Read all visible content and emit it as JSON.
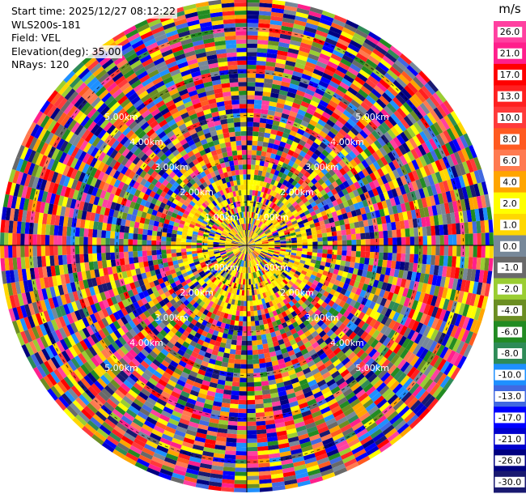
{
  "header": {
    "start_time": "Start time: 2025/12/27 08:12:22",
    "instrument": "WLS200s-181",
    "field": "Field: VEL",
    "elevation": "Elevation(deg): 35.00",
    "nrays": "NRays: 120"
  },
  "chart_data": {
    "type": "heatmap",
    "projection": "polar",
    "title": "",
    "field": "VEL",
    "elevation_deg": 35.0,
    "n_rays": 120,
    "range_rings_km": [
      1.0,
      2.0,
      3.0,
      4.0,
      5.0
    ],
    "ring_labels": [
      "1.00km",
      "2.00km",
      "3.00km",
      "4.00km",
      "5.00km"
    ],
    "max_range_km": 5.7,
    "grid": true,
    "colorbar": {
      "unit": "m/s",
      "placement": "right",
      "ticks": [
        "26.0",
        "21.0",
        "17.0",
        "13.0",
        "10.0",
        "8.0",
        "6.0",
        "4.0",
        "2.0",
        "1.0",
        "0.0",
        "-1.0",
        "-2.0",
        "-4.0",
        "-6.0",
        "-8.0",
        "-10.0",
        "-13.0",
        "-17.0",
        "-21.0",
        "-26.0",
        "-30.0"
      ],
      "bins": [
        {
          "min": 26.0,
          "max": 30.0,
          "color": "#ff40a0"
        },
        {
          "min": 21.0,
          "max": 26.0,
          "color": "#ff1f8c"
        },
        {
          "min": 17.0,
          "max": 21.0,
          "color": "#ff0000"
        },
        {
          "min": 13.0,
          "max": 17.0,
          "color": "#ff2020"
        },
        {
          "min": 10.0,
          "max": 13.0,
          "color": "#ff3a3a"
        },
        {
          "min": 8.0,
          "max": 10.0,
          "color": "#ff5a20"
        },
        {
          "min": 6.0,
          "max": 8.0,
          "color": "#ff7a50"
        },
        {
          "min": 4.0,
          "max": 6.0,
          "color": "#ffa500"
        },
        {
          "min": 2.0,
          "max": 4.0,
          "color": "#ffff00"
        },
        {
          "min": 1.0,
          "max": 2.0,
          "color": "#ffd700"
        },
        {
          "min": 0.0,
          "max": 1.0,
          "color": "#778899"
        },
        {
          "min": -1.0,
          "max": 0.0,
          "color": "#696969"
        },
        {
          "min": -2.0,
          "max": -1.0,
          "color": "#9acd32"
        },
        {
          "min": -4.0,
          "max": -2.0,
          "color": "#6b8e23"
        },
        {
          "min": -6.0,
          "max": -4.0,
          "color": "#228b22"
        },
        {
          "min": -8.0,
          "max": -6.0,
          "color": "#2e8b57"
        },
        {
          "min": -10.0,
          "max": -8.0,
          "color": "#1e90ff"
        },
        {
          "min": -13.0,
          "max": -10.0,
          "color": "#4169e1"
        },
        {
          "min": -17.0,
          "max": -13.0,
          "color": "#0000ff"
        },
        {
          "min": -21.0,
          "max": -17.0,
          "color": "#0000cd"
        },
        {
          "min": -26.0,
          "max": -21.0,
          "color": "#000080"
        },
        {
          "min": -30.0,
          "max": -26.0,
          "color": "#191970"
        }
      ]
    }
  }
}
